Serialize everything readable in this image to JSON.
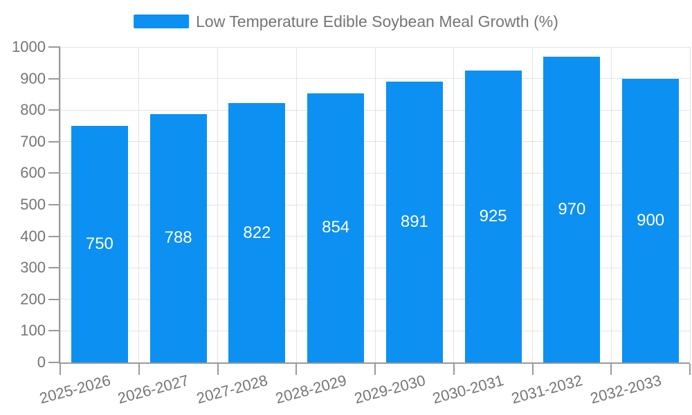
{
  "chart_data": {
    "type": "bar",
    "title": "",
    "legend_position": "top-center",
    "categories": [
      "2025-2026",
      "2026-2027",
      "2027-2028",
      "2028-2029",
      "2029-2030",
      "2030-2031",
      "2031-2032",
      "2032-2033"
    ],
    "series": [
      {
        "name": "Low Temperature Edible Soybean Meal Growth (%)",
        "values": [
          750,
          788,
          822,
          854,
          891,
          925,
          970,
          900
        ]
      }
    ],
    "xlabel": "",
    "ylabel": "",
    "ylim": [
      0,
      1000
    ],
    "ytick_step": 100,
    "ytick_labels": [
      "0",
      "100",
      "200",
      "300",
      "400",
      "500",
      "600",
      "700",
      "800",
      "900",
      "1000"
    ],
    "grid": true,
    "value_labels_inside_bars": true,
    "colors": {
      "bar": "#0C90F2",
      "bar_value_text": "#ffffff",
      "axis_line": "#999999",
      "grid_line": "#e3e3e3",
      "tick_text": "#757575",
      "legend_text": "#757575",
      "background": "#ffffff"
    }
  }
}
